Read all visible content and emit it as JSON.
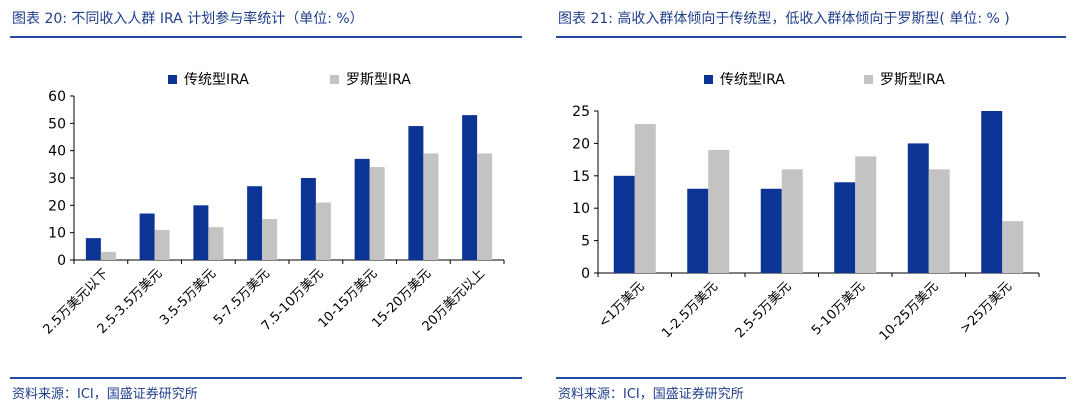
{
  "colors": {
    "series_blue": "#0b3494",
    "series_gray": "#c3c3c3",
    "title_blue": "#1f3e8c",
    "rule_blue": "#1f4aa0"
  },
  "left": {
    "title": "图表 20:  不同收入人群  IRA 计划参与率统计（单位: %）",
    "source": "资料来源：ICI，国盛证券研究所"
  },
  "right": {
    "title": "图表 21: 高收入群体倾向于传统型，低收入群体倾向于罗斯型( 单位: % )",
    "source": "资料来源：ICI，国盛证券研究所"
  },
  "chart_data": [
    {
      "type": "bar",
      "categories": [
        "2.5万美元以下",
        "2.5-3.5万美元",
        "3.5-5万美元",
        "5-7.5万美元",
        "7.5-10万美元",
        "10-15万美元",
        "15-20万美元",
        "20万美元以上"
      ],
      "series": [
        {
          "name": "传统型IRA",
          "values": [
            8,
            17,
            20,
            27,
            30,
            37,
            49,
            53
          ]
        },
        {
          "name": "罗斯型IRA",
          "values": [
            3,
            11,
            12,
            15,
            21,
            34,
            39,
            39
          ]
        }
      ],
      "yticks": [
        "0",
        "10",
        "20",
        "30",
        "40",
        "50",
        "60"
      ],
      "ylim": [
        0,
        60
      ],
      "legend_position": "top",
      "grid": false
    },
    {
      "type": "bar",
      "categories": [
        "<1万美元",
        "1-2.5万美元",
        "2.5-5万美元",
        "5-10万美元",
        "10-25万美元",
        ">25万美元"
      ],
      "series": [
        {
          "name": "传统型IRA",
          "values": [
            15,
            13,
            13,
            14,
            20,
            25
          ]
        },
        {
          "name": "罗斯型IRA",
          "values": [
            23,
            19,
            16,
            18,
            16,
            8
          ]
        }
      ],
      "yticks": [
        "0",
        "5",
        "10",
        "15",
        "20",
        "25"
      ],
      "ylim": [
        0,
        25
      ],
      "legend_position": "top",
      "grid": false
    }
  ]
}
